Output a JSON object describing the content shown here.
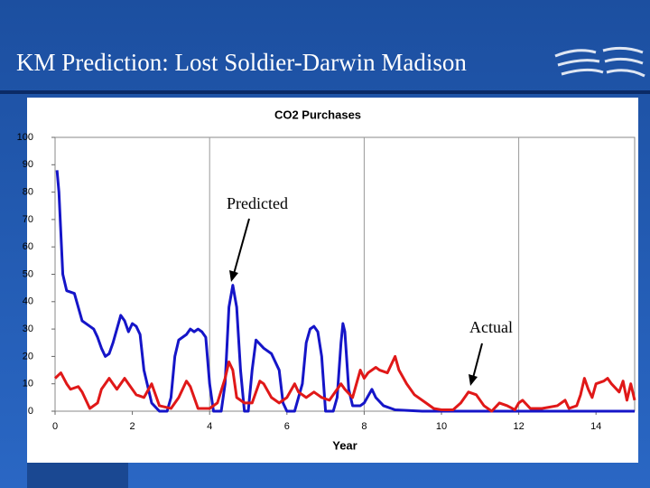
{
  "slide_title": "KM Prediction: Lost Soldier-Darwin Madison",
  "chart_data": {
    "type": "line",
    "title": "CO2 Purchases",
    "xlabel": "Year",
    "xlim": [
      0,
      15
    ],
    "xticks": [
      0,
      2,
      4,
      6,
      8,
      10,
      12,
      14
    ],
    "xgrid": [
      4,
      8,
      12
    ],
    "ylim": [
      0,
      100
    ],
    "yticks": [
      0,
      10,
      20,
      30,
      40,
      50,
      60,
      70,
      80,
      90,
      100
    ],
    "series": [
      {
        "name": "Predicted",
        "color": "#1515c8",
        "x": [
          0.05,
          0.1,
          0.2,
          0.3,
          0.5,
          0.6,
          0.7,
          0.9,
          1.0,
          1.1,
          1.2,
          1.3,
          1.4,
          1.5,
          1.6,
          1.7,
          1.8,
          1.9,
          2.0,
          2.1,
          2.2,
          2.3,
          2.5,
          2.7,
          2.9,
          3.0,
          3.1,
          3.2,
          3.4,
          3.5,
          3.6,
          3.7,
          3.8,
          3.9,
          4.0,
          4.1,
          4.3,
          4.4,
          4.5,
          4.6,
          4.7,
          4.8,
          4.9,
          5.0,
          5.1,
          5.2,
          5.4,
          5.6,
          5.8,
          5.9,
          6.0,
          6.2,
          6.4,
          6.5,
          6.6,
          6.7,
          6.8,
          6.9,
          7.0,
          7.2,
          7.3,
          7.4,
          7.45,
          7.5,
          7.6,
          7.7,
          7.9,
          8.0,
          8.2,
          8.3,
          8.5,
          8.8,
          9.5,
          15
        ],
        "values": [
          88,
          80,
          50,
          44,
          43,
          38,
          33,
          31,
          30,
          27,
          23,
          20,
          21,
          25,
          30,
          35,
          33,
          29,
          32,
          31,
          28,
          15,
          3,
          0,
          0,
          5,
          20,
          26,
          28,
          30,
          29,
          30,
          29,
          27,
          10,
          0,
          0,
          10,
          38,
          46,
          38,
          15,
          0,
          0,
          15,
          26,
          23,
          21,
          15,
          3,
          0,
          0,
          10,
          25,
          30,
          31,
          29,
          20,
          0,
          0,
          5,
          25,
          32,
          29,
          8,
          2,
          2,
          3,
          8,
          5,
          2,
          0.5,
          0,
          0
        ]
      },
      {
        "name": "Actual",
        "color": "#e01818",
        "x": [
          0,
          0.15,
          0.3,
          0.4,
          0.6,
          0.7,
          0.9,
          1.1,
          1.2,
          1.4,
          1.5,
          1.6,
          1.8,
          1.9,
          2.1,
          2.3,
          2.5,
          2.6,
          2.7,
          3.0,
          3.2,
          3.4,
          3.5,
          3.7,
          4.0,
          4.2,
          4.4,
          4.5,
          4.6,
          4.7,
          4.9,
          5.1,
          5.3,
          5.4,
          5.6,
          5.8,
          6.0,
          6.2,
          6.3,
          6.5,
          6.7,
          6.8,
          6.9,
          7.1,
          7.3,
          7.4,
          7.5,
          7.7,
          7.8,
          7.9,
          8.0,
          8.1,
          8.3,
          8.4,
          8.6,
          8.8,
          8.9,
          9.1,
          9.3,
          9.6,
          9.8,
          10.0,
          10.3,
          10.5,
          10.7,
          10.9,
          11.1,
          11.3,
          11.5,
          11.7,
          11.9,
          12.0,
          12.1,
          12.3,
          12.6,
          13.0,
          13.2,
          13.3,
          13.5,
          13.6,
          13.7,
          13.8,
          13.9,
          14.0,
          14.2,
          14.3,
          14.4,
          14.6,
          14.7,
          14.8,
          14.9,
          15.0
        ],
        "values": [
          12,
          14,
          10,
          8,
          9,
          7,
          1,
          3,
          8,
          12,
          10,
          8,
          12,
          10,
          6,
          5,
          10,
          6,
          2,
          1,
          5,
          11,
          9,
          1,
          1,
          3,
          12,
          18,
          15,
          5,
          3,
          3,
          11,
          10,
          5,
          3,
          5,
          10,
          7,
          5,
          7,
          6,
          5,
          4,
          8,
          10,
          8,
          5,
          10,
          15,
          12,
          14,
          16,
          15,
          14,
          20,
          15,
          10,
          6,
          3,
          1,
          0.5,
          0.5,
          3,
          7,
          6,
          2,
          0,
          3,
          2,
          0.5,
          3,
          4,
          1,
          1,
          2,
          4,
          1,
          2,
          6,
          12,
          8,
          5,
          10,
          11,
          12,
          10,
          7,
          11,
          4,
          10,
          4
        ]
      }
    ]
  }
}
